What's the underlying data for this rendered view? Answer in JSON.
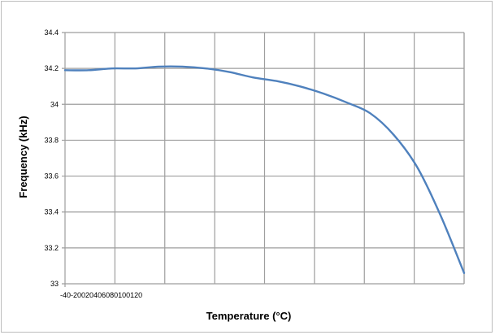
{
  "chart_data": {
    "type": "line",
    "title": "",
    "xlabel": "Temperature (°C)",
    "ylabel": "Frequency (kHz)",
    "x_tick_labels": [
      "-40",
      "-20",
      "0",
      "20",
      "40",
      "60",
      "80",
      "100",
      "120"
    ],
    "x_tick_label_text": "-40-200204060801001‍20",
    "y_tick_labels": [
      "33",
      "33.2",
      "33.4",
      "33.6",
      "33.8",
      "34",
      "34.2",
      "34.4"
    ],
    "ylim": [
      33,
      34.4
    ],
    "xlim": [
      -40,
      130
    ],
    "grid": true,
    "series": [
      {
        "color": "#4f81bd",
        "x": [
          -40,
          -30,
          -20,
          -10,
          0,
          10,
          20,
          30,
          40,
          50,
          60,
          70,
          80,
          90,
          100,
          110,
          120,
          130
        ],
        "y": [
          34.19,
          34.19,
          34.2,
          34.2,
          34.21,
          34.21,
          34.2,
          34.18,
          34.15,
          34.13,
          34.1,
          34.06,
          34.01,
          33.95,
          33.83,
          33.65,
          33.38,
          33.06
        ]
      }
    ]
  }
}
